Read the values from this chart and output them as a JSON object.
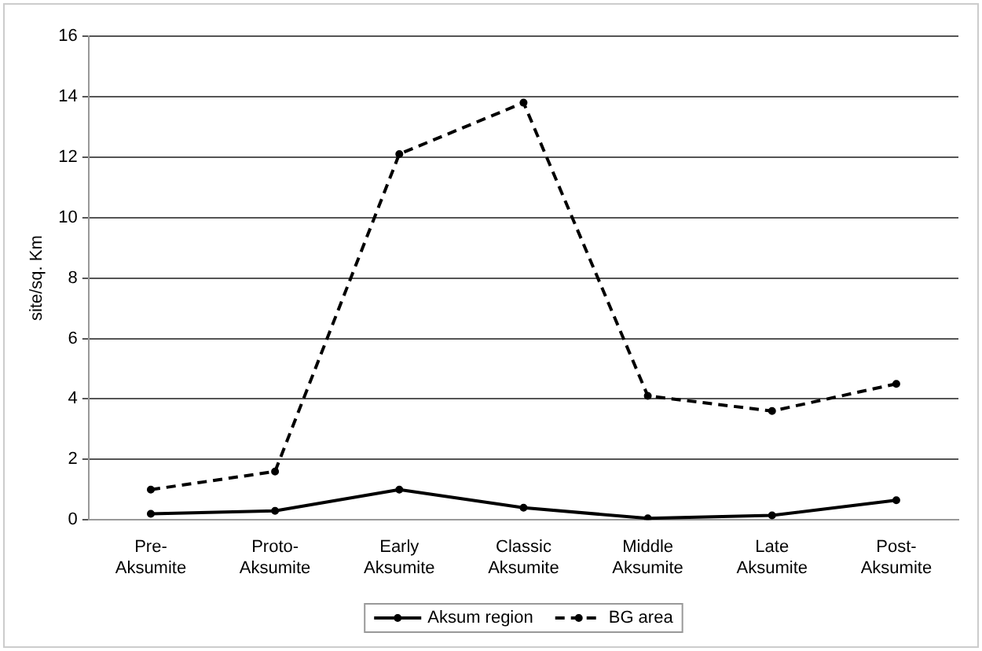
{
  "chart_data": {
    "type": "line",
    "ylabel": "site/sq. Km",
    "categories": [
      "Pre-Aksumite",
      "Proto-Aksumite",
      "Early Aksumite",
      "Classic Aksumite",
      "Middle Aksumite",
      "Late Aksumite",
      "Post-Aksumite"
    ],
    "series": [
      {
        "name": "Aksum region",
        "color": "#000000",
        "line_style": "solid",
        "values": [
          0.2,
          0.3,
          1.0,
          0.4,
          0.05,
          0.15,
          0.65
        ]
      },
      {
        "name": "BG area",
        "color": "#000000",
        "line_style": "dashed",
        "values": [
          1.0,
          1.6,
          12.1,
          13.8,
          4.1,
          3.6,
          4.5
        ]
      }
    ],
    "ylim": [
      0,
      16
    ],
    "yticks": [
      0,
      2,
      4,
      6,
      8,
      10,
      12,
      14,
      16
    ],
    "grid": "y",
    "legend": "bottom",
    "marker": "circle"
  }
}
